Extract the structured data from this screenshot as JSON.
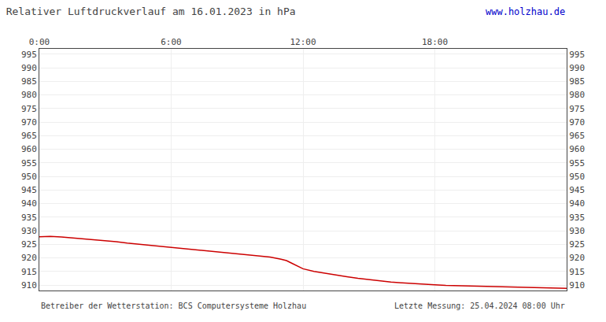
{
  "chart_data": {
    "type": "line",
    "title": "Relativer Luftdruckverlauf am 16.01.2023 in hPa",
    "annotations": [
      "www.holzhau.de",
      "Betreiber der Wetterstation: BCS Computersysteme Holzhau",
      "Letzte Messung: 25.04.2024 08:00 Uhr"
    ],
    "x": [
      0.0,
      0.5,
      1.0,
      1.5,
      2.0,
      2.5,
      3.0,
      3.5,
      4.0,
      4.5,
      5.0,
      5.5,
      6.0,
      6.5,
      7.0,
      7.5,
      8.0,
      8.5,
      9.0,
      9.5,
      10.0,
      10.5,
      11.0,
      11.25,
      11.5,
      11.75,
      12.0,
      12.5,
      13.0,
      13.5,
      14.0,
      14.5,
      15.0,
      15.5,
      16.0,
      16.5,
      17.0,
      17.5,
      18.0,
      18.5,
      19.0,
      19.5,
      20.0,
      20.5,
      21.0,
      21.5,
      22.0,
      22.5,
      23.0,
      23.5,
      24.0
    ],
    "values": [
      927.8,
      927.9,
      927.7,
      927.4,
      927.1,
      926.8,
      926.5,
      926.0,
      925.5,
      925.1,
      924.7,
      924.3,
      923.9,
      923.5,
      923.1,
      922.7,
      922.3,
      921.9,
      921.5,
      921.1,
      920.7,
      920.3,
      919.5,
      919.0,
      918.0,
      917.0,
      916.0,
      915.0,
      914.3,
      913.7,
      913.1,
      912.5,
      912.0,
      911.5,
      911.1,
      910.8,
      910.5,
      910.3,
      910.1,
      909.9,
      909.8,
      909.7,
      909.6,
      909.5,
      909.4,
      909.3,
      909.2,
      909.1,
      909.0,
      908.9,
      908.8
    ],
    "color": "#cc0000",
    "xlim": [
      0,
      24
    ],
    "xticks": [
      {
        "value": 0,
        "label": "0:00"
      },
      {
        "value": 6,
        "label": "6:00"
      },
      {
        "value": 12,
        "label": "12:00"
      },
      {
        "value": 18,
        "label": "18:00"
      }
    ],
    "ylim": [
      908,
      997
    ],
    "yticks": [
      910,
      915,
      920,
      925,
      930,
      935,
      940,
      945,
      950,
      955,
      960,
      965,
      970,
      975,
      980,
      985,
      990,
      995
    ],
    "y2lim": [
      908,
      997
    ],
    "y2ticks": [
      910,
      915,
      920,
      925,
      930,
      935,
      940,
      945,
      950,
      955,
      960,
      965,
      970,
      975,
      980,
      985,
      990,
      995
    ],
    "grid": true
  }
}
